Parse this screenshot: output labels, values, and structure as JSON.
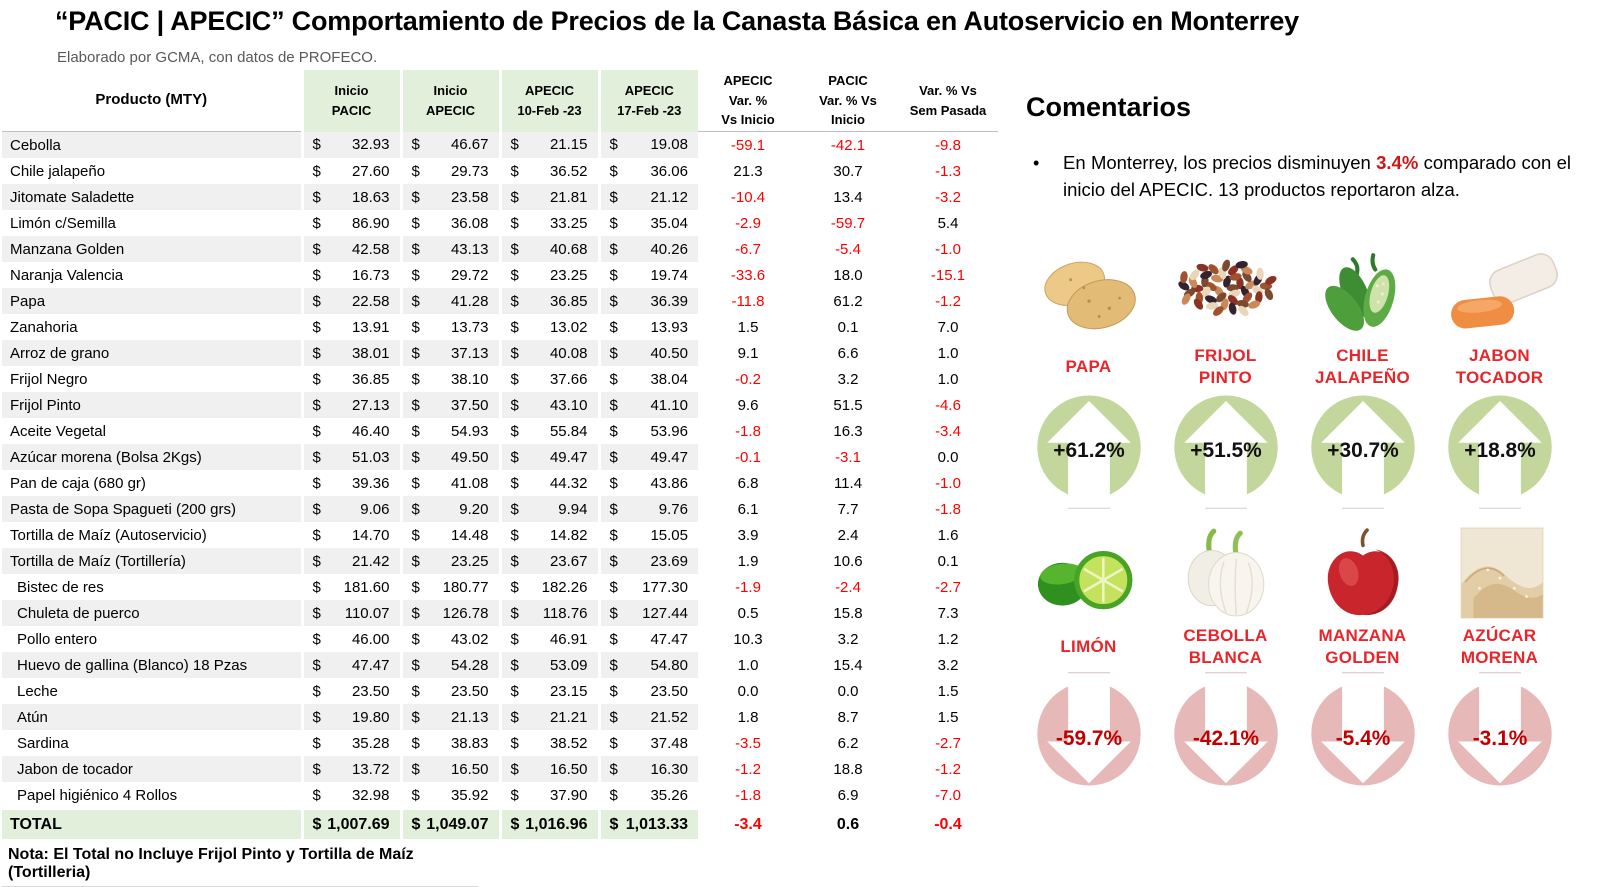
{
  "title": "“PACIC | APECIC” Comportamiento de Precios de la Canasta Básica en Autoservicio en Monterrey",
  "subtitle": "Elaborado por GCMA, con datos de PROFECO.",
  "colors": {
    "header_green": "#e2efda",
    "stripe_gray": "#f0f0f0",
    "negative_red": "#fe0000",
    "accent_red": "#e8252a",
    "badge_up_green": "#c3d69b",
    "badge_down_pink": "#e6b9b8",
    "badge_down_text": "#c00000"
  },
  "table": {
    "currency": "$",
    "headers": [
      "Producto (MTY)",
      "Inicio\nPACIC",
      "Inicio\nAPECIC",
      "APECIC\n10-Feb -23",
      "APECIC\n17-Feb -23",
      "APECIC\nVar. %\nVs  Inicio",
      "PACIC\nVar. % Vs\nInicio",
      "Var. % Vs\nSem Pasada"
    ],
    "rows": [
      {
        "product": "Cebolla",
        "inicio_pacic": "32.93",
        "inicio_apecic": "46.67",
        "feb10": "21.15",
        "feb17": "19.08",
        "var_apecic": "-59.1",
        "var_pacic": "-42.1",
        "var_sem": "-9.8"
      },
      {
        "product": "Chile jalapeño",
        "inicio_pacic": "27.60",
        "inicio_apecic": "29.73",
        "feb10": "36.52",
        "feb17": "36.06",
        "var_apecic": "21.3",
        "var_pacic": "30.7",
        "var_sem": "-1.3"
      },
      {
        "product": "Jitomate Saladette",
        "inicio_pacic": "18.63",
        "inicio_apecic": "23.58",
        "feb10": "21.81",
        "feb17": "21.12",
        "var_apecic": "-10.4",
        "var_pacic": "13.4",
        "var_sem": "-3.2"
      },
      {
        "product": "Limón c/Semilla",
        "inicio_pacic": "86.90",
        "inicio_apecic": "36.08",
        "feb10": "33.25",
        "feb17": "35.04",
        "var_apecic": "-2.9",
        "var_pacic": "-59.7",
        "var_sem": "5.4"
      },
      {
        "product": "Manzana Golden",
        "inicio_pacic": "42.58",
        "inicio_apecic": "43.13",
        "feb10": "40.68",
        "feb17": "40.26",
        "var_apecic": "-6.7",
        "var_pacic": "-5.4",
        "var_sem": "-1.0"
      },
      {
        "product": "Naranja Valencia",
        "inicio_pacic": "16.73",
        "inicio_apecic": "29.72",
        "feb10": "23.25",
        "feb17": "19.74",
        "var_apecic": "-33.6",
        "var_pacic": "18.0",
        "var_sem": "-15.1"
      },
      {
        "product": "Papa",
        "inicio_pacic": "22.58",
        "inicio_apecic": "41.28",
        "feb10": "36.85",
        "feb17": "36.39",
        "var_apecic": "-11.8",
        "var_pacic": "61.2",
        "var_sem": "-1.2"
      },
      {
        "product": "Zanahoria",
        "inicio_pacic": "13.91",
        "inicio_apecic": "13.73",
        "feb10": "13.02",
        "feb17": "13.93",
        "var_apecic": "1.5",
        "var_pacic": "0.1",
        "var_sem": "7.0"
      },
      {
        "product": "Arroz de grano",
        "inicio_pacic": "38.01",
        "inicio_apecic": "37.13",
        "feb10": "40.08",
        "feb17": "40.50",
        "var_apecic": "9.1",
        "var_pacic": "6.6",
        "var_sem": "1.0"
      },
      {
        "product": "Frijol Negro",
        "inicio_pacic": "36.85",
        "inicio_apecic": "38.10",
        "feb10": "37.66",
        "feb17": "38.04",
        "var_apecic": "-0.2",
        "var_pacic": "3.2",
        "var_sem": "1.0"
      },
      {
        "product": "Frijol Pinto",
        "inicio_pacic": "27.13",
        "inicio_apecic": "37.50",
        "feb10": "43.10",
        "feb17": "41.10",
        "var_apecic": "9.6",
        "var_pacic": "51.5",
        "var_sem": "-4.6"
      },
      {
        "product": "Aceite Vegetal",
        "inicio_pacic": "46.40",
        "inicio_apecic": "54.93",
        "feb10": "55.84",
        "feb17": "53.96",
        "var_apecic": "-1.8",
        "var_pacic": "16.3",
        "var_sem": "-3.4"
      },
      {
        "product": "Azúcar morena (Bolsa 2Kgs)",
        "inicio_pacic": "51.03",
        "inicio_apecic": "49.50",
        "feb10": "49.47",
        "feb17": "49.47",
        "var_apecic": "-0.1",
        "var_pacic": "-3.1",
        "var_sem": "0.0"
      },
      {
        "product": "Pan de caja (680 gr)",
        "inicio_pacic": "39.36",
        "inicio_apecic": "41.08",
        "feb10": "44.32",
        "feb17": "43.86",
        "var_apecic": "6.8",
        "var_pacic": "11.4",
        "var_sem": "-1.0"
      },
      {
        "product": "Pasta de Sopa Spagueti (200 grs)",
        "inicio_pacic": "9.06",
        "inicio_apecic": "9.20",
        "feb10": "9.94",
        "feb17": "9.76",
        "var_apecic": "6.1",
        "var_pacic": "7.7",
        "var_sem": "-1.8"
      },
      {
        "product": "Tortilla de Maíz (Autoservicio)",
        "inicio_pacic": "14.70",
        "inicio_apecic": "14.48",
        "feb10": "14.82",
        "feb17": "15.05",
        "var_apecic": "3.9",
        "var_pacic": "2.4",
        "var_sem": "1.6"
      },
      {
        "product": "Tortilla de Maíz (Tortillería)",
        "inicio_pacic": "21.42",
        "inicio_apecic": "23.25",
        "feb10": "23.67",
        "feb17": "23.69",
        "var_apecic": "1.9",
        "var_pacic": "10.6",
        "var_sem": "0.1"
      },
      {
        "product": "Bistec de res",
        "indent": true,
        "inicio_pacic": "181.60",
        "inicio_apecic": "180.77",
        "feb10": "182.26",
        "feb17": "177.30",
        "var_apecic": "-1.9",
        "var_pacic": "-2.4",
        "var_sem": "-2.7"
      },
      {
        "product": "Chuleta de puerco",
        "indent": true,
        "inicio_pacic": "110.07",
        "inicio_apecic": "126.78",
        "feb10": "118.76",
        "feb17": "127.44",
        "var_apecic": "0.5",
        "var_pacic": "15.8",
        "var_sem": "7.3"
      },
      {
        "product": "Pollo entero",
        "indent": true,
        "inicio_pacic": "46.00",
        "inicio_apecic": "43.02",
        "feb10": "46.91",
        "feb17": "47.47",
        "var_apecic": "10.3",
        "var_pacic": "3.2",
        "var_sem": "1.2"
      },
      {
        "product": "Huevo de gallina (Blanco) 18 Pzas",
        "indent": true,
        "inicio_pacic": "47.47",
        "inicio_apecic": "54.28",
        "feb10": "53.09",
        "feb17": "54.80",
        "var_apecic": "1.0",
        "var_pacic": "15.4",
        "var_sem": "3.2"
      },
      {
        "product": "Leche",
        "indent": true,
        "inicio_pacic": "23.50",
        "inicio_apecic": "23.50",
        "feb10": "23.15",
        "feb17": "23.50",
        "var_apecic": "0.0",
        "var_pacic": "0.0",
        "var_sem": "1.5"
      },
      {
        "product": "Atún",
        "indent": true,
        "inicio_pacic": "19.80",
        "inicio_apecic": "21.13",
        "feb10": "21.21",
        "feb17": "21.52",
        "var_apecic": "1.8",
        "var_pacic": "8.7",
        "var_sem": "1.5"
      },
      {
        "product": "Sardina",
        "indent": true,
        "inicio_pacic": "35.28",
        "inicio_apecic": "38.83",
        "feb10": "38.52",
        "feb17": "37.48",
        "var_apecic": "-3.5",
        "var_pacic": "6.2",
        "var_sem": "-2.7"
      },
      {
        "product": "Jabon de tocador",
        "indent": true,
        "inicio_pacic": "13.72",
        "inicio_apecic": "16.50",
        "feb10": "16.50",
        "feb17": "16.30",
        "var_apecic": "-1.2",
        "var_pacic": "18.8",
        "var_sem": "-1.2"
      },
      {
        "product": "Papel higiénico 4 Rollos",
        "indent": true,
        "inicio_pacic": "32.98",
        "inicio_apecic": "35.92",
        "feb10": "37.90",
        "feb17": "35.26",
        "var_apecic": "-1.8",
        "var_pacic": "6.9",
        "var_sem": "-7.0"
      }
    ],
    "total": {
      "product": "TOTAL",
      "inicio_pacic": "1,007.69",
      "inicio_apecic": "1,049.07",
      "feb10": "1,016.96",
      "feb17": "1,013.33",
      "var_apecic": "-3.4",
      "var_pacic": "0.6",
      "var_sem": "-0.4"
    },
    "note": "Nota: El Total no Incluye Frijol Pinto y Tortilla de Maíz (Tortilleria)"
  },
  "comments": {
    "title": "Comentarios",
    "bullet": {
      "marker": "•",
      "pre": "En Monterrey, los precios disminuyen ",
      "highlight": "3.4%",
      "post": " comparado con el inicio del APECIC. 13 productos reportaron alza."
    }
  },
  "highlights": {
    "up": [
      {
        "name": "PAPA",
        "pct": "+61.2%",
        "icon": "papa"
      },
      {
        "name": "FRIJOL\nPINTO",
        "pct": "+51.5%",
        "icon": "frijol-pinto"
      },
      {
        "name": "CHILE\nJALAPEÑO",
        "pct": "+30.7%",
        "icon": "chile-jalapeno"
      },
      {
        "name": "JABON\nTOCADOR",
        "pct": "+18.8%",
        "icon": "jabon-tocador"
      }
    ],
    "down": [
      {
        "name": "LIMÓN",
        "pct": "-59.7%",
        "icon": "limon"
      },
      {
        "name": "CEBOLLA\nBLANCA",
        "pct": "-42.1%",
        "icon": "cebolla-blanca"
      },
      {
        "name": "MANZANA\nGOLDEN",
        "pct": "-5.4%",
        "icon": "manzana-golden"
      },
      {
        "name": "AZÚCAR\nMORENA",
        "pct": "-3.1%",
        "icon": "azucar-morena"
      }
    ]
  }
}
